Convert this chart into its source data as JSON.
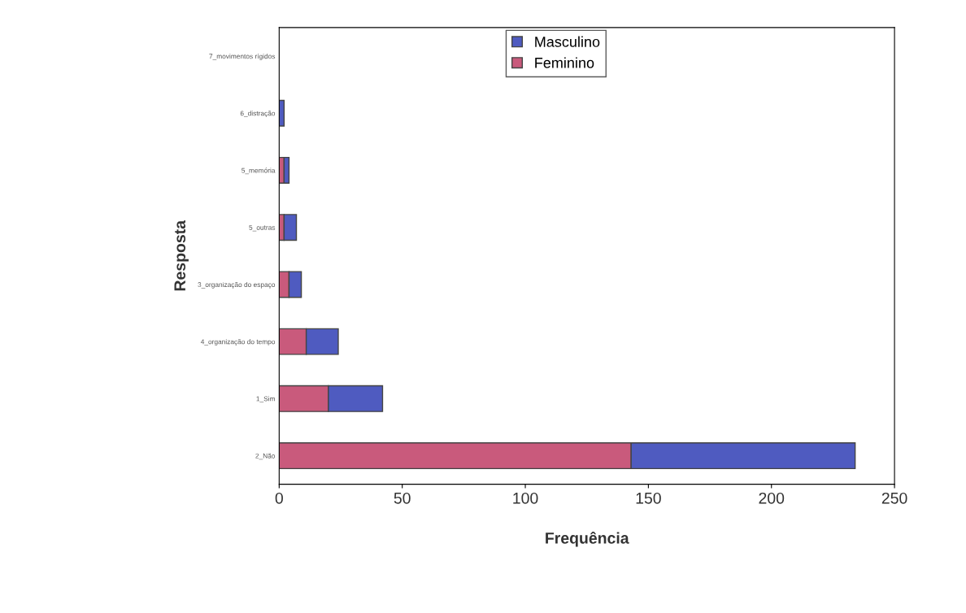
{
  "chart_data": {
    "type": "bar",
    "orientation": "horizontal",
    "stacked": true,
    "xlabel": "Frequência",
    "ylabel": "Resposta",
    "categories": [
      "7_movimentos rígidos",
      "6_distração",
      "5_memória",
      "5_outras",
      "3_organização do espaço",
      "4_organização do tempo",
      "1_Sim",
      "2_Não"
    ],
    "series": [
      {
        "name": "Feminino",
        "color": "#c95a7c",
        "values": [
          0,
          0,
          2,
          2,
          4,
          11,
          20,
          143
        ]
      },
      {
        "name": "Masculino",
        "color": "#4f5bc0",
        "values": [
          0,
          2,
          2,
          5,
          5,
          13,
          22,
          91
        ]
      }
    ],
    "xlim": [
      0,
      250
    ],
    "xticks": [
      0,
      50,
      100,
      150,
      200,
      250
    ],
    "grid": false,
    "legend": "top"
  }
}
